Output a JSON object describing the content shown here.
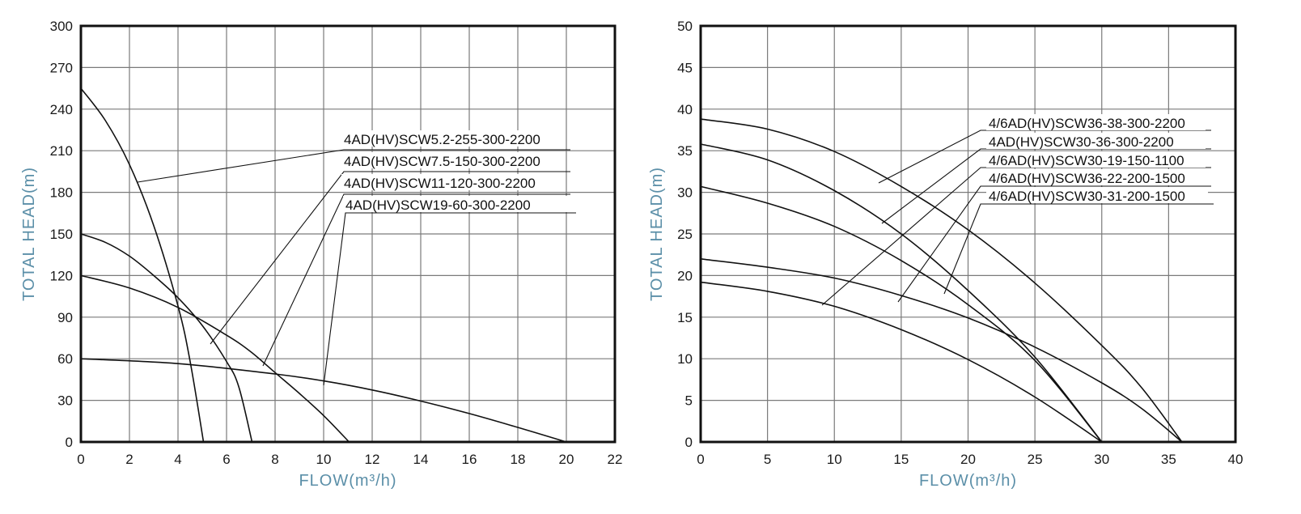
{
  "chart_data": [
    {
      "type": "line",
      "xlabel": "FLOW(m³/h)",
      "ylabel": "TOTAL HEAD(m)",
      "xlim": [
        0,
        22
      ],
      "ylim": [
        0,
        300
      ],
      "xticks": [
        "0",
        "2",
        "4",
        "6",
        "8",
        "10",
        "12",
        "14",
        "16",
        "18",
        "20",
        "22"
      ],
      "yticks": [
        "0",
        "30",
        "60",
        "90",
        "120",
        "150",
        "180",
        "210",
        "240",
        "270",
        "300"
      ],
      "grid": true,
      "axis_color": "#5b8fa8",
      "series": [
        {
          "name": "4AD(HV)SCW5.2-255-300-2200",
          "x": [
            0,
            1,
            2,
            3,
            4,
            4.5,
            5.05
          ],
          "y": [
            255,
            232,
            200,
            156,
            98,
            58,
            0
          ]
        },
        {
          "name": "4AD(HV)SCW7.5-150-300-2200",
          "x": [
            0,
            1,
            2,
            3,
            4,
            5,
            6,
            6.5,
            7.05
          ],
          "y": [
            150,
            144,
            134,
            120,
            104,
            84,
            58,
            40,
            0
          ]
        },
        {
          "name": "4AD(HV)SCW11-120-300-2200",
          "x": [
            0,
            2,
            4,
            6,
            7,
            8,
            9,
            10,
            11.05
          ],
          "y": [
            120,
            111,
            97,
            77,
            65,
            50,
            35,
            19,
            0
          ]
        },
        {
          "name": "4AD(HV)SCW19-60-300-2200",
          "x": [
            0,
            4,
            8,
            10,
            12,
            14,
            16,
            18,
            20
          ],
          "y": [
            60,
            56.5,
            49,
            44,
            37.5,
            29.5,
            20.5,
            10.5,
            0
          ]
        }
      ]
    },
    {
      "type": "line",
      "xlabel": "FLOW(m³/h)",
      "ylabel": "TOTAL HEAD(m)",
      "xlim": [
        0,
        40
      ],
      "ylim": [
        0,
        50
      ],
      "xticks": [
        "0",
        "5",
        "10",
        "15",
        "20",
        "25",
        "30",
        "35",
        "40"
      ],
      "yticks": [
        "0",
        "5",
        "10",
        "15",
        "20",
        "25",
        "30",
        "35",
        "40",
        "45",
        "50"
      ],
      "grid": true,
      "axis_color": "#5b8fa8",
      "series": [
        {
          "name": "4/6AD(HV)SCW36-38-300-2200",
          "x": [
            0,
            5,
            10,
            15,
            20,
            25,
            30,
            33,
            36
          ],
          "y": [
            38.8,
            37.6,
            34.9,
            30.7,
            25.5,
            19.1,
            11.6,
            6.5,
            0
          ]
        },
        {
          "name": "4AD(HV)SCW30-36-300-2200",
          "x": [
            0,
            5,
            10,
            15,
            20,
            25,
            30
          ],
          "y": [
            35.8,
            33.9,
            30.2,
            25,
            18.2,
            10.2,
            0
          ]
        },
        {
          "name": "4/6AD(HV)SCW30-19-150-1100",
          "x": [
            0,
            5,
            10,
            15,
            20,
            25,
            30
          ],
          "y": [
            19.2,
            18.1,
            16.3,
            13.5,
            9.9,
            5.4,
            0
          ]
        },
        {
          "name": "4/6AD(HV)SCW36-22-200-1500",
          "x": [
            0,
            5,
            10,
            15,
            20,
            25,
            30,
            33,
            36
          ],
          "y": [
            22,
            21,
            19.7,
            17.6,
            14.9,
            11.4,
            7.1,
            4.0,
            0
          ]
        },
        {
          "name": "4/6AD(HV)SCW30-31-200-1500",
          "x": [
            0,
            5,
            10,
            15,
            20,
            25,
            30
          ],
          "y": [
            30.7,
            28.7,
            25.9,
            21.8,
            16.5,
            9.8,
            0
          ]
        }
      ]
    }
  ]
}
